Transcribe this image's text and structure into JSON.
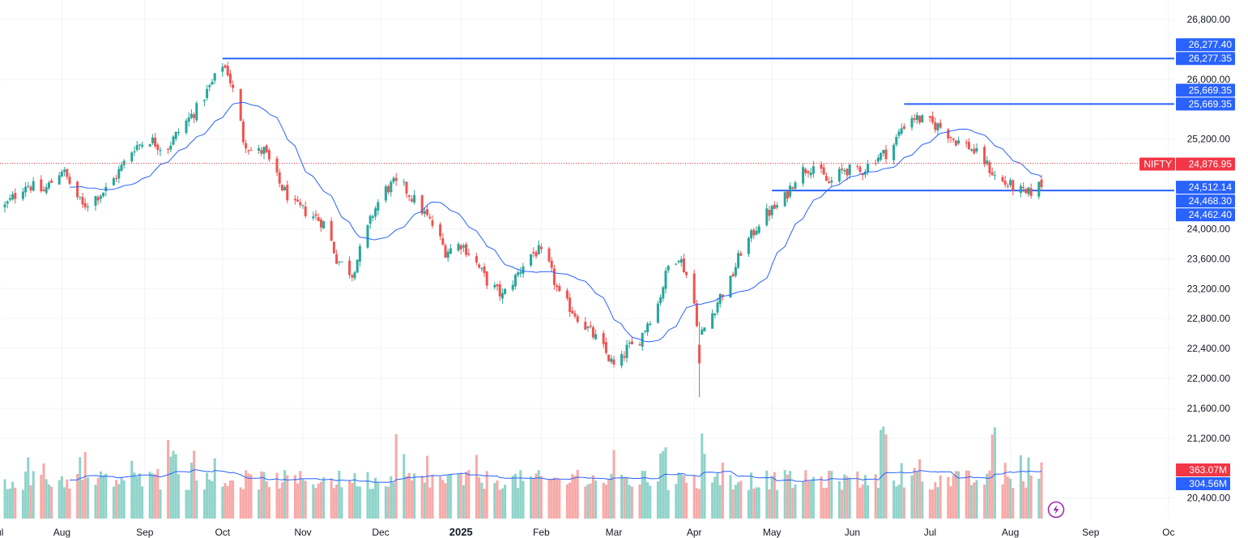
{
  "chart_data": {
    "type": "candlestick",
    "symbol": "NIFTY",
    "last_price": "24,876.95",
    "colors": {
      "up": "#26a69a",
      "down": "#ef5350",
      "up_volume": "#8fd3c9",
      "down_volume": "#f7a9a7",
      "moving_average": "#2962ff",
      "level_line": "#2962ff",
      "price_tag": "#f23645",
      "grid": "#f0f3fa"
    },
    "y_axis": {
      "range": [
        20200,
        27000
      ],
      "ticks": [
        "26,800.00",
        "26,000.00",
        "25,200.00",
        "24,000.00",
        "23,600.00",
        "23,200.00",
        "22,800.00",
        "22,400.00",
        "22,000.00",
        "21,600.00",
        "21,200.00",
        "20,400.00"
      ],
      "tick_values": [
        26800,
        26000,
        25200,
        24000,
        23600,
        23200,
        22800,
        22400,
        22000,
        21600,
        21200,
        20400
      ]
    },
    "x_axis": {
      "labels": [
        {
          "text": "ul",
          "day": -2
        },
        {
          "text": "Aug",
          "day": 22
        },
        {
          "text": "Sep",
          "day": 54
        },
        {
          "text": "Oct",
          "day": 84
        },
        {
          "text": "Nov",
          "day": 115
        },
        {
          "text": "Dec",
          "day": 145
        },
        {
          "text": "2025",
          "day": 176,
          "bold": true
        },
        {
          "text": "Feb",
          "day": 207
        },
        {
          "text": "Mar",
          "day": 235
        },
        {
          "text": "Apr",
          "day": 266
        },
        {
          "text": "May",
          "day": 296
        },
        {
          "text": "Jun",
          "day": 327
        },
        {
          "text": "Jul",
          "day": 357
        },
        {
          "text": "Aug",
          "day": 388
        },
        {
          "text": "Sep",
          "day": 419
        },
        {
          "text": "Oc",
          "day": 449
        }
      ]
    },
    "level_lines": [
      {
        "price": 26277.35,
        "from_day": 84,
        "labels": [
          "26,277.40",
          "26,277.35"
        ]
      },
      {
        "price": 25669.35,
        "from_day": 347,
        "labels": [
          "25,669.35",
          "25,669.35"
        ]
      },
      {
        "price": 24512.14,
        "from_day": 296,
        "labels": [
          "24,512.14",
          "24,468.30",
          "24,462.40"
        ]
      }
    ],
    "volume_tags": [
      "363.07M",
      "304.56M"
    ],
    "price_anchors": [
      [
        0,
        24300
      ],
      [
        8,
        24600
      ],
      [
        15,
        24500
      ],
      [
        22,
        24800
      ],
      [
        30,
        24300
      ],
      [
        40,
        24550
      ],
      [
        50,
        25100
      ],
      [
        56,
        25200
      ],
      [
        62,
        25050
      ],
      [
        68,
        25350
      ],
      [
        74,
        25600
      ],
      [
        80,
        25950
      ],
      [
        84,
        26200
      ],
      [
        86,
        26100
      ],
      [
        90,
        25600
      ],
      [
        92,
        25200
      ],
      [
        96,
        25000
      ],
      [
        100,
        25050
      ],
      [
        106,
        24600
      ],
      [
        112,
        24300
      ],
      [
        118,
        24200
      ],
      [
        124,
        24050
      ],
      [
        128,
        23600
      ],
      [
        134,
        23400
      ],
      [
        138,
        23800
      ],
      [
        142,
        24200
      ],
      [
        146,
        24500
      ],
      [
        150,
        24600
      ],
      [
        154,
        24550
      ],
      [
        160,
        24300
      ],
      [
        166,
        24000
      ],
      [
        170,
        23700
      ],
      [
        176,
        23800
      ],
      [
        180,
        23650
      ],
      [
        186,
        23300
      ],
      [
        192,
        23100
      ],
      [
        198,
        23400
      ],
      [
        202,
        23650
      ],
      [
        206,
        23700
      ],
      [
        210,
        23500
      ],
      [
        214,
        23100
      ],
      [
        218,
        22950
      ],
      [
        224,
        22700
      ],
      [
        230,
        22450
      ],
      [
        236,
        22100
      ],
      [
        240,
        22400
      ],
      [
        244,
        22450
      ],
      [
        248,
        22750
      ],
      [
        252,
        23000
      ],
      [
        256,
        23500
      ],
      [
        260,
        23650
      ],
      [
        264,
        23300
      ],
      [
        266,
        23000
      ],
      [
        268,
        22550
      ],
      [
        272,
        22800
      ],
      [
        276,
        23100
      ],
      [
        280,
        23300
      ],
      [
        284,
        23700
      ],
      [
        288,
        23900
      ],
      [
        292,
        24150
      ],
      [
        296,
        24250
      ],
      [
        300,
        24350
      ],
      [
        306,
        24750
      ],
      [
        312,
        24850
      ],
      [
        318,
        24600
      ],
      [
        324,
        24800
      ],
      [
        330,
        24750
      ],
      [
        336,
        24950
      ],
      [
        342,
        25050
      ],
      [
        346,
        25350
      ],
      [
        350,
        25500
      ],
      [
        354,
        25450
      ],
      [
        358,
        25400
      ],
      [
        362,
        25350
      ],
      [
        366,
        25200
      ],
      [
        372,
        25100
      ],
      [
        378,
        24900
      ],
      [
        382,
        24700
      ],
      [
        386,
        24600
      ],
      [
        390,
        24550
      ],
      [
        394,
        24450
      ],
      [
        398,
        24550
      ],
      [
        400,
        24600
      ]
    ],
    "spike_volume_days": [
      64,
      152,
      254,
      270,
      339,
      382
    ]
  }
}
